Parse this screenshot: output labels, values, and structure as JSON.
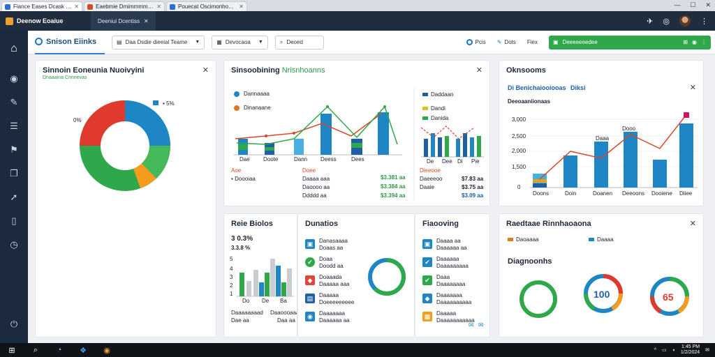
{
  "browser": {
    "tabs": [
      {
        "label": "Fiance Eases Dcask Danonmcsoronaks",
        "color": "#2a6fd6",
        "active": true
      },
      {
        "label": "Eaebmie Dmimmmmaevonis",
        "color": "#d64a2a",
        "active": false
      },
      {
        "label": "Pouecat Oscimonhones",
        "color": "#2a6fd6",
        "active": false
      }
    ],
    "window_controls": [
      "—",
      "☐",
      "✕"
    ]
  },
  "app": {
    "brand": "Deenow Eoaiue",
    "active_tab": "Deeniui Dcentiss",
    "active_tab_close": "✕",
    "right_icons": [
      "✈",
      "◎",
      "⋮"
    ]
  },
  "sidebar": {
    "items": [
      {
        "icon": "home-icon",
        "glyph": "⌂"
      },
      {
        "icon": "dashboard-icon",
        "glyph": "◉"
      },
      {
        "icon": "wrench-icon",
        "glyph": "✎"
      },
      {
        "icon": "report-icon",
        "glyph": "☰"
      },
      {
        "icon": "people-icon",
        "glyph": "⚑"
      },
      {
        "icon": "book-icon",
        "glyph": "❐"
      },
      {
        "icon": "rocket-icon",
        "glyph": "➚"
      },
      {
        "icon": "document-icon",
        "glyph": "▯"
      },
      {
        "icon": "clock-icon",
        "glyph": "◷"
      },
      {
        "icon": "power-icon",
        "glyph": "⏻"
      }
    ]
  },
  "toolbar": {
    "page_title": "Snison Eiinks",
    "select1": "Daa Dsdie dieeial Teame",
    "select1_icon": "▤",
    "select2": "Devocaoa",
    "select2_icon": "▦",
    "search_placeholder": "Deoed",
    "search_icon": "⌕",
    "tool1": "Pcis",
    "tool2": "Dots",
    "tool3": "Fiex",
    "green_label": "Deeeeeeedee",
    "green_icons": [
      "⊞",
      "◉",
      "⋮"
    ]
  },
  "card1": {
    "title": "Sinnoin Eoneunia Nuoivyini",
    "subtitle": "Dnaaaina Cnnnevas",
    "close": "✕",
    "label_right": "▪ 5%",
    "label_left": "0%",
    "colors": {
      "red": "#e03a2e",
      "blue": "#1f86c6",
      "green": "#2ea84a",
      "orange": "#f39c1e",
      "lightgreen": "#45b85a"
    }
  },
  "card2": {
    "title": "Sinsoobining",
    "title_accent": "Nrisnhoanns",
    "close": "✕",
    "legend": [
      {
        "label": "Dannaaaa",
        "color": "#1f86c6"
      },
      {
        "label": "Dinanaane",
        "color": "#e07a20"
      }
    ],
    "legend2": [
      {
        "label": "Daddaan",
        "color": "#1f5fa6"
      },
      {
        "label": "Dandi",
        "color": "#e0c020"
      },
      {
        "label": "Danida",
        "color": "#2ea84a"
      }
    ],
    "x_labels": [
      "Dae",
      "Doote",
      "Dann",
      "Deess",
      "Dees"
    ],
    "x_labels2": [
      "De",
      "Dee",
      "Di",
      "Pie"
    ],
    "rows_left": [
      {
        "label": "Paaie",
        "value": "Aoe"
      },
      {
        "label": "Doooiaa",
        "value": "Doee"
      },
      {
        "label": "",
        "value": "Doooe"
      }
    ],
    "values_mid": [
      "Daaaa aaa",
      "Daoooo aa",
      "Ddddd aa"
    ],
    "values_green": [
      "$3.381 aa",
      "$3.384 aa",
      "$3.394 aa"
    ],
    "values_right_labels": [
      "Dieeooe",
      "Daeeeoo",
      "Daaie"
    ],
    "values_right": [
      "$7.83 aa",
      "$3.75 aa",
      "$3.09 aa"
    ]
  },
  "card3": {
    "title": "Oknsooms",
    "legend1": "Di Benichaiooiooas",
    "legend2": "Diksi",
    "close": "✕",
    "series_label": "Deeoaaniionaas",
    "y_ticks": [
      "3,000",
      "2,500",
      "2,000",
      "1,500",
      "0"
    ],
    "x_labels": [
      "Doons",
      "Doin",
      "Doanen",
      "Deeoons",
      "Dooiene",
      "Diiee"
    ],
    "point_labels": [
      "Daaa",
      "Dooo"
    ]
  },
  "card4": {
    "title": "Reie Biolos",
    "big_value": "3 0.3%",
    "sub_value": "3.3.8 %",
    "y_ticks": [
      "5",
      "4",
      "3",
      "2",
      "1"
    ],
    "x_labels": [
      "Do",
      "De",
      "Ba"
    ],
    "foot_labels": [
      "Daaaaaaaad",
      "Daaoooaaa",
      "Doee"
    ],
    "foot_values": [
      "Dae aa",
      "Dae aa",
      "Daa aa"
    ]
  },
  "card5": {
    "title": "Dunatios",
    "items": [
      {
        "label": "Danasaaaa",
        "value": "Doaas aa",
        "color": "#1f86c6",
        "glyph": "▣"
      },
      {
        "label": "Doaa",
        "value": "Doodd aa",
        "color": "#2ea84a",
        "glyph": "✔"
      },
      {
        "label": "Doaaada",
        "value": "Daaaaa aaa",
        "color": "#e0453a",
        "glyph": "◆"
      },
      {
        "label": "Daaaaa",
        "value": "Doeeeeeeeee",
        "color": "#1f5fa6",
        "glyph": "▤"
      },
      {
        "label": "Daaaaaaa",
        "value": "Daaaaaa aa",
        "color": "#1f86c6",
        "glyph": "◉"
      }
    ]
  },
  "card6": {
    "title": "Fiaooving",
    "items": [
      {
        "label": "Daaaa aa",
        "value": "Daaaaaa aa",
        "color": "#1f86c6",
        "glyph": "▣"
      },
      {
        "label": "Daaaaaa",
        "value": "Daaaaaaaaa",
        "color": "#1f86c6",
        "glyph": "✔"
      },
      {
        "label": "Daaa",
        "value": "Daaaaaaaa",
        "color": "#2ea84a",
        "glyph": "✔"
      },
      {
        "label": "Daaaaaaa",
        "value": "Daaaaaaaaaa",
        "color": "#1f86c6",
        "glyph": "◆"
      },
      {
        "label": "Daaaaa",
        "value": "Daaaaaaaaaaa",
        "color": "#f39c1e",
        "glyph": "▦"
      }
    ],
    "corner_icons": [
      "✉",
      "✉"
    ]
  },
  "card7": {
    "title": "Raedtaae Rinnhaoaona",
    "close": "✕",
    "legend1": "Daoaaaa",
    "legend2": "Daaaa",
    "section": "Diagnoonhs",
    "gauge2_value": "100",
    "gauge3_value": "65"
  },
  "taskbar": {
    "start": "⊞",
    "search": "⌕",
    "apps": [
      "◔",
      "❖",
      "◉"
    ],
    "time": "1:45 PM",
    "date": "1/2/2024",
    "tray_icons": [
      "^",
      "▭",
      "◖",
      "✉"
    ]
  }
}
